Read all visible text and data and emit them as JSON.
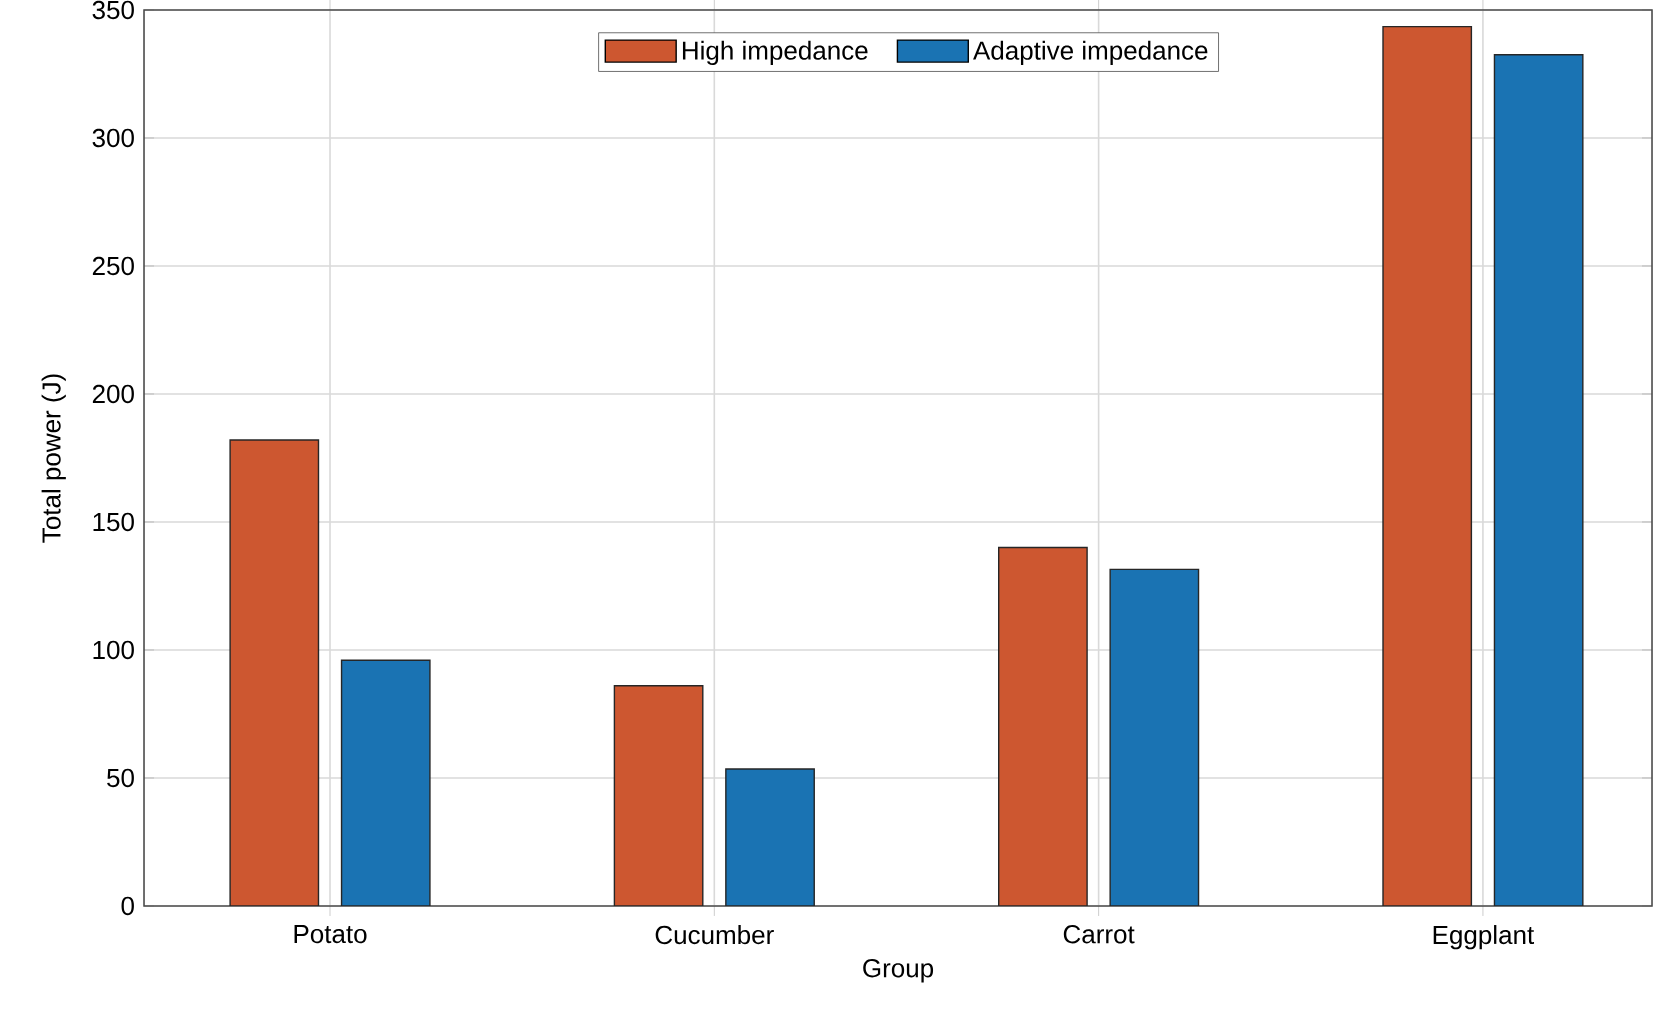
{
  "chart_data": {
    "type": "bar",
    "xlabel": "Group",
    "ylabel": "Total power (J)",
    "categories": [
      "Potato",
      "Cucumber",
      "Carrot",
      "Eggplant"
    ],
    "series": [
      {
        "name": "High impedance",
        "color": "#cd5730",
        "values": [
          182,
          86,
          140,
          343.5
        ]
      },
      {
        "name": "Adaptive impedance",
        "color": "#1a73b3",
        "values": [
          96,
          53.5,
          131.5,
          332.5
        ]
      }
    ],
    "ylim": [
      0,
      350
    ],
    "yticks": [
      0,
      50,
      100,
      150,
      200,
      250,
      300,
      350
    ],
    "grid": true,
    "legend": "top"
  }
}
